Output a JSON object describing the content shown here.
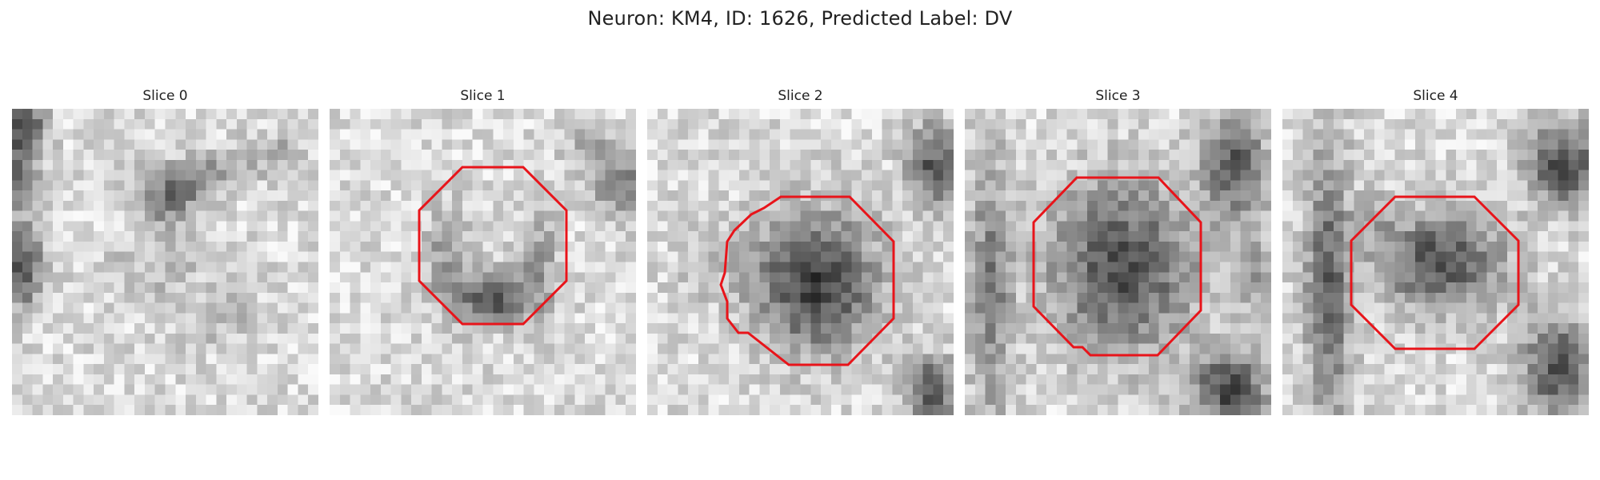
{
  "figure": {
    "title": "Neuron: KM4, ID: 1626, Predicted Label: DV"
  },
  "colormap": "gray",
  "outline_color": "#e8141a",
  "panels": [
    {
      "title": "Slice 0",
      "has_outline": false
    },
    {
      "title": "Slice 1",
      "has_outline": true
    },
    {
      "title": "Slice 2",
      "has_outline": true
    },
    {
      "title": "Slice 3",
      "has_outline": true
    },
    {
      "title": "Slice 4",
      "has_outline": true
    }
  ]
}
